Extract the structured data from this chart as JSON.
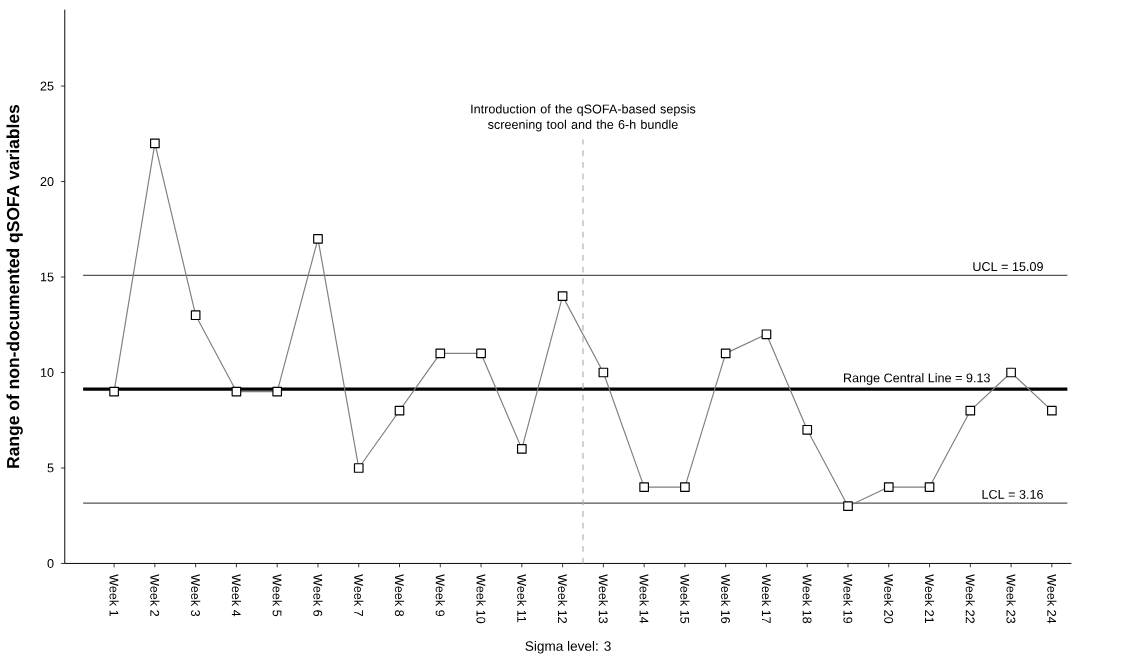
{
  "chart_data": {
    "type": "line",
    "ylabel": "Range of non-documented qSOFA variables",
    "xlabel": "Sigma level: 3",
    "categories": [
      "Week 1",
      "Week 2",
      "Week 3",
      "Week 4",
      "Week 5",
      "Week 6",
      "Week 7",
      "Week 8",
      "Week 9",
      "Week 10",
      "Week 11",
      "Week 12",
      "Week 13",
      "Week 14",
      "Week 15",
      "Week 16",
      "Week 17",
      "Week 18",
      "Week 19",
      "Week 20",
      "Week 21",
      "Week 22",
      "Week 23",
      "Week 24"
    ],
    "values": [
      9,
      22,
      13,
      9,
      9,
      17,
      5,
      8,
      11,
      11,
      6,
      14,
      10,
      4,
      4,
      11,
      12,
      7,
      3,
      4,
      4,
      8,
      10,
      8
    ],
    "color": "#7f7f7f",
    "marker": "square",
    "line_style": "solid",
    "ylim": [
      0,
      29
    ],
    "yticks": [
      0,
      5,
      10,
      15,
      20,
      25
    ],
    "grid": false,
    "ref_lines": [
      {
        "axis": "y",
        "value": 15.09,
        "label": "UCL = 15.09",
        "color": "#555555",
        "line_style": "solid"
      },
      {
        "axis": "y",
        "value": 9.13,
        "label": "Range Central Line = 9.13",
        "color": "#000000",
        "line_style": "solid"
      },
      {
        "axis": "y",
        "value": 3.16,
        "label": "LCL = 3.16",
        "color": "#555555",
        "line_style": "solid"
      }
    ],
    "annotations": [
      "Introduction of the qSOFA-based sepsis screening tool and the 6-h bundle"
    ]
  }
}
